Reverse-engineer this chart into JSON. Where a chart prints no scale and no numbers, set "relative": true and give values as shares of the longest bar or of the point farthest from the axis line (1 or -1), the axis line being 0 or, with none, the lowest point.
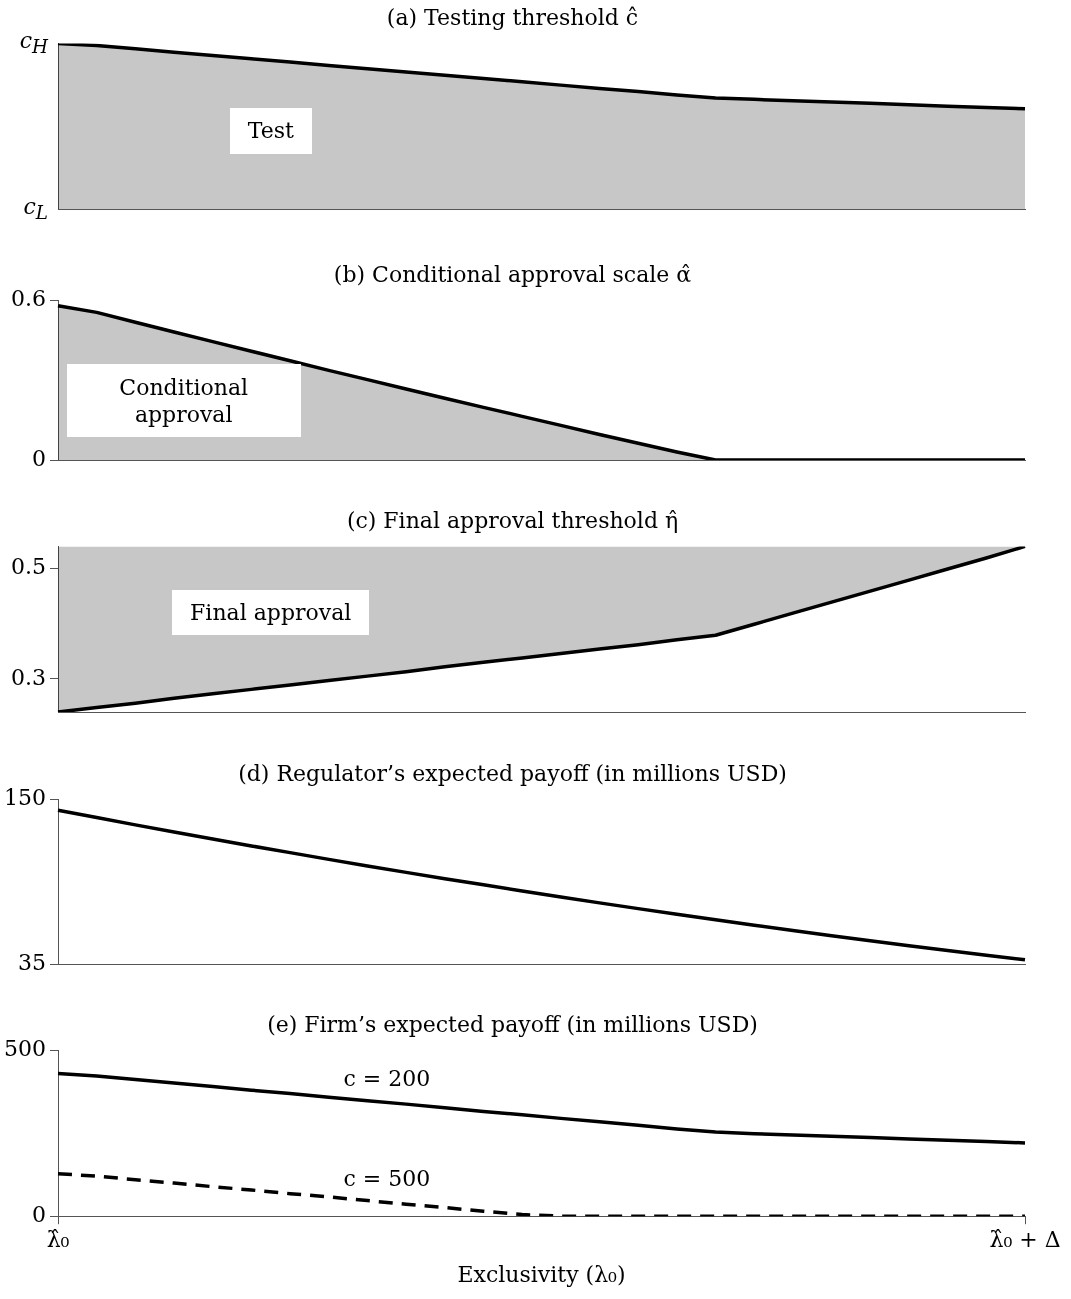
{
  "chart_data": [
    {
      "type": "area",
      "title": "(a) Testing threshold ĉ",
      "relative": true,
      "categories": [
        null,
        null,
        null,
        null,
        null,
        null,
        null,
        null,
        null,
        null,
        null,
        null,
        null,
        null,
        null,
        null,
        null,
        null,
        null,
        null,
        null,
        null,
        null,
        null,
        null,
        null
      ],
      "series": [
        {
          "color": "#000000",
          "values": [
            1,
            0.987,
            0.967,
            0.947,
            0.927,
            0.907,
            0.887,
            0.867,
            0.847,
            0.828,
            0.808,
            0.788,
            0.768,
            0.748,
            0.728,
            0.709,
            0.689,
            0.67,
            0.662,
            0.654,
            0.646,
            0.638,
            0.629,
            0.621,
            0.613,
            0.605
          ]
        }
      ],
      "tick_labels": false,
      "annotations": [
        "c$_{H}$",
        "Test",
        "c$_{L}$"
      ]
    },
    {
      "type": "area",
      "title": "(b) Conditional approval scale α̂",
      "categories": [
        null,
        null,
        null,
        null,
        null,
        null,
        null,
        null,
        null,
        null,
        null,
        null,
        null,
        null,
        null,
        null,
        null,
        null,
        null,
        null,
        null,
        null,
        null,
        null,
        null,
        null
      ],
      "series": [
        {
          "color": "#000000",
          "values": [
            0.58,
            0.555,
            0.518,
            0.481,
            0.445,
            0.409,
            0.373,
            0.337,
            0.302,
            0.267,
            0.232,
            0.198,
            0.164,
            0.13,
            0.096,
            0.063,
            0.03,
            0,
            0,
            0,
            0,
            0,
            0,
            0,
            0,
            0
          ]
        }
      ],
      "ylim": [
        0,
        0.6
      ],
      "yticks": [
        0,
        0.6
      ],
      "tick_labels": "y",
      "annotations": [
        "Conditional approval"
      ]
    },
    {
      "type": "line",
      "title": "(c) Final approval threshold η̂",
      "categories": [
        null,
        null,
        null,
        null,
        null,
        null,
        null,
        null,
        null,
        null,
        null,
        null,
        null,
        null,
        null,
        null,
        null,
        null,
        null,
        null,
        null,
        null,
        null,
        null,
        null,
        null
      ],
      "series": [
        {
          "color": "#000000",
          "values": [
            0.24,
            0.248,
            0.256,
            0.265,
            0.273,
            0.281,
            0.289,
            0.297,
            0.305,
            0.313,
            0.322,
            0.33,
            0.338,
            0.346,
            0.354,
            0.362,
            0.371,
            0.379,
            0.399,
            0.419,
            0.439,
            0.459,
            0.479,
            0.499,
            0.519,
            0.54
          ],
          "lower": [
            0.24,
            0.248,
            0.256,
            0.265,
            0.273,
            0.281,
            0.289,
            0.297,
            0.305,
            0.313,
            0.322,
            0.33,
            0.338,
            0.346,
            0.354,
            0.362,
            0.371,
            0.379,
            0.399,
            0.419,
            0.439,
            0.459,
            0.479,
            0.499,
            0.519,
            0.54
          ],
          "upper": [
            0.54,
            0.54,
            0.54,
            0.54,
            0.54,
            0.54,
            0.54,
            0.54,
            0.54,
            0.54,
            0.54,
            0.54,
            0.54,
            0.54,
            0.54,
            0.54,
            0.54,
            0.54,
            0.54,
            0.54,
            0.54,
            0.54,
            0.54,
            0.54,
            0.54,
            0.54
          ]
        }
      ],
      "ylim": [
        0.24,
        0.54
      ],
      "yticks": [
        0.3,
        0.5
      ],
      "tick_labels": "y",
      "annotations": [
        "Final approval"
      ]
    },
    {
      "type": "line",
      "title": "(d) Regulator’s expected payoff (in millions USD)",
      "categories": [
        null,
        null,
        null,
        null,
        null,
        null,
        null,
        null,
        null,
        null,
        null,
        null,
        null,
        null,
        null,
        null,
        null,
        null,
        null,
        null,
        null,
        null,
        null,
        null,
        null,
        null
      ],
      "series": [
        {
          "color": "#000000",
          "values": [
            142.4,
            137.3,
            132.2,
            127.2,
            122.3,
            117.5,
            112.8,
            108.1,
            103.5,
            99,
            94.6,
            90.3,
            86,
            81.8,
            77.7,
            73.7,
            69.8,
            65.9,
            62.1,
            58.4,
            54.8,
            51.3,
            47.8,
            44.4,
            41.1,
            37.9
          ]
        }
      ],
      "ylim": [
        35,
        150
      ],
      "yticks": [
        35,
        150
      ],
      "tick_labels": "y"
    },
    {
      "type": "line",
      "title": "(e) Firm’s expected payoff (in millions USD)",
      "xlabel": "Exclusivity (λ₀)",
      "categories": [
        "λ̂₀",
        null,
        null,
        null,
        null,
        null,
        null,
        null,
        null,
        null,
        null,
        null,
        null,
        null,
        null,
        null,
        null,
        null,
        null,
        null,
        null,
        null,
        null,
        null,
        null,
        "λ̂₀ + Δ"
      ],
      "series": [
        {
          "name": "c = 200",
          "color": "#000000",
          "values": [
            430,
            423,
            412,
            402,
            391,
            380,
            370,
            359,
            348,
            338,
            327,
            316,
            306,
            295,
            285,
            274,
            263,
            254,
            249,
            245,
            241,
            237,
            233,
            229,
            225,
            221
          ]
        },
        {
          "name": "c = 500",
          "color": "#000000",
          "line_style": "dashed",
          "values": [
            128,
            121,
            110,
            100,
            89,
            79,
            68,
            58,
            47,
            36,
            26,
            15,
            5,
            0,
            0,
            0,
            0,
            0,
            0,
            0,
            0,
            0,
            0,
            0,
            0,
            0
          ]
        }
      ],
      "ylim": [
        0,
        500
      ],
      "yticks": [
        0,
        500
      ]
    }
  ]
}
